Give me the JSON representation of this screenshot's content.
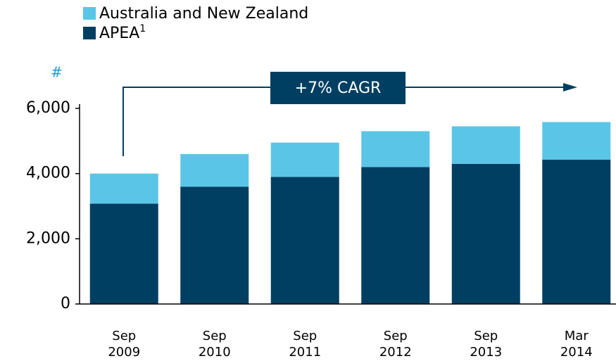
{
  "chart_data": {
    "type": "stacked_bar",
    "y_label": "#",
    "annotation": "+7% CAGR",
    "legend_footnote": "1",
    "categories": [
      "Sep 2009",
      "Sep 2010",
      "Sep 2011",
      "Sep 2012",
      "Sep 2013",
      "Mar 2014"
    ],
    "series": [
      {
        "name": "APEA",
        "color": "#003f62",
        "values": [
          3080,
          3600,
          3900,
          4200,
          4300,
          4430
        ]
      },
      {
        "name": "Australia and New Zealand",
        "color": "#5bc5e8",
        "values": [
          920,
          1000,
          1050,
          1100,
          1150,
          1150
        ]
      }
    ],
    "ylim": [
      0,
      6000
    ],
    "yticks": [
      0,
      {
        "value": 2000,
        "label": "2,000"
      },
      {
        "value": 4000,
        "label": "4,000"
      },
      {
        "value": 6000,
        "label": "6,000"
      }
    ],
    "grid": false
  }
}
